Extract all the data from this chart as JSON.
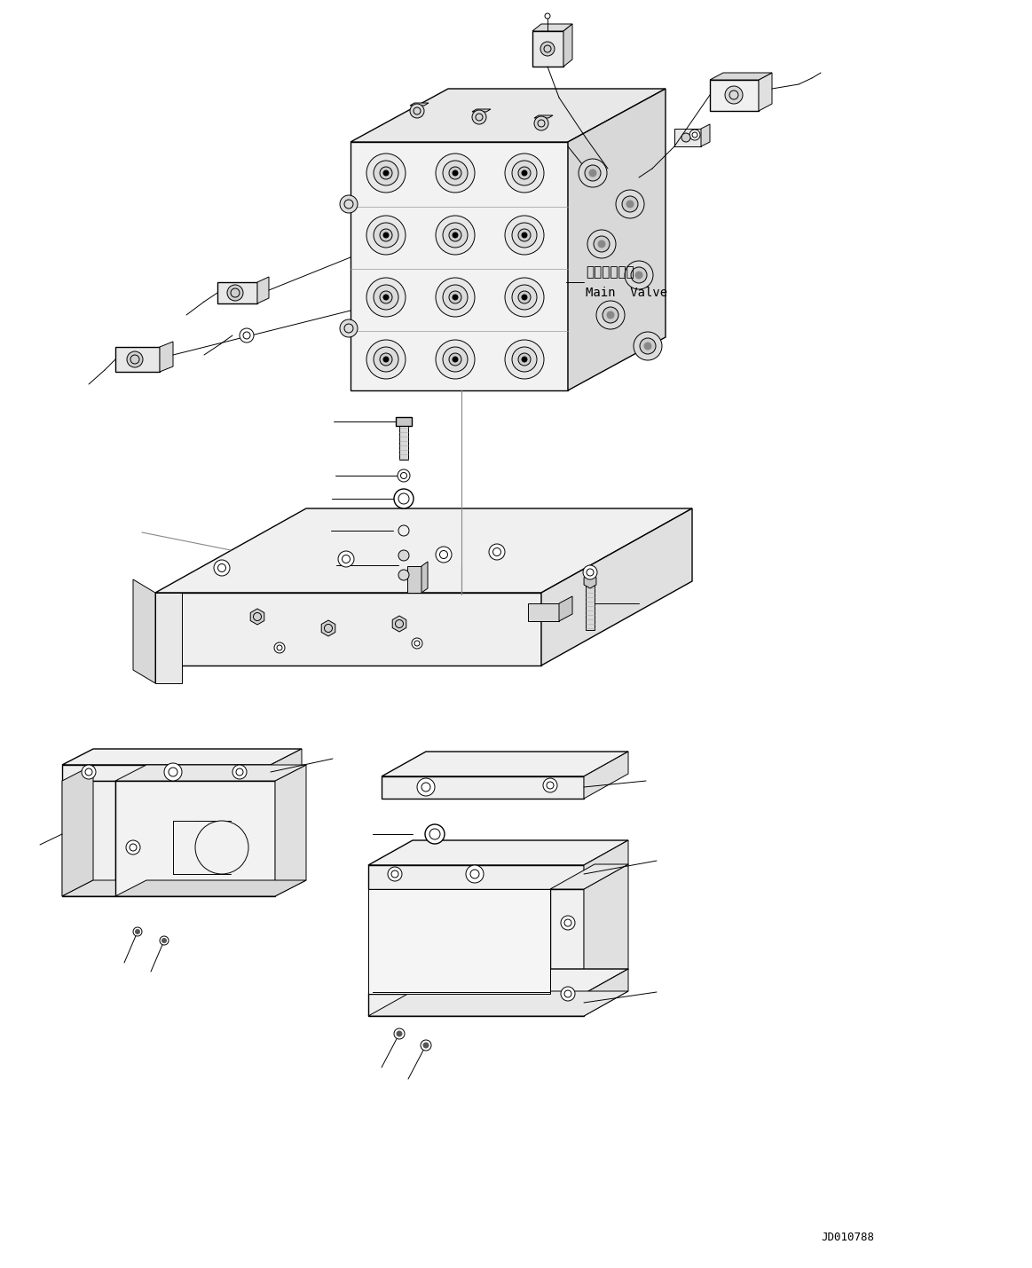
{
  "bg_color": "#ffffff",
  "line_color": "#000000",
  "figsize": [
    11.63,
    14.29
  ],
  "dpi": 100,
  "label_main_valve_jp": "メインバルブ",
  "label_main_valve_en": "Main  Valve",
  "label_id": "JD010788"
}
